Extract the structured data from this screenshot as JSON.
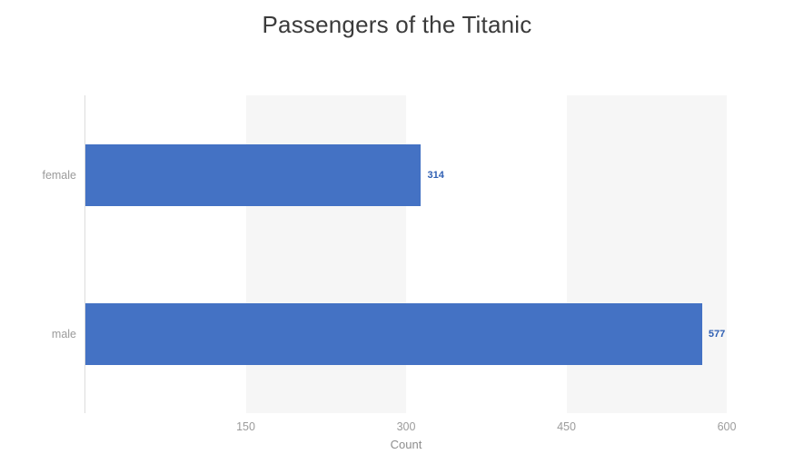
{
  "title": "Passengers of the Titanic",
  "colors": {
    "bar": "#4472c4",
    "value_label": "#2f5fb3",
    "band": "#f6f6f6",
    "axis_line": "#dcdcdc",
    "tick_label": "#9b9b9b",
    "category_label": "#9b9b9b",
    "axis_title": "#8d8d8d",
    "title": "#3b3b3b"
  },
  "chart_data": {
    "type": "bar",
    "orientation": "horizontal",
    "title": "Passengers of the Titanic",
    "categories": [
      "female",
      "male"
    ],
    "values": [
      314,
      577
    ],
    "value_labels": [
      "314",
      "577"
    ],
    "xlabel": "Count",
    "ylabel": "",
    "xlim": [
      0,
      600
    ],
    "xticks": [
      150,
      300,
      450,
      600
    ],
    "xtick_labels": [
      "150",
      "300",
      "450",
      "600"
    ],
    "grid": "alternating-split-area-bands",
    "legend": "none"
  }
}
